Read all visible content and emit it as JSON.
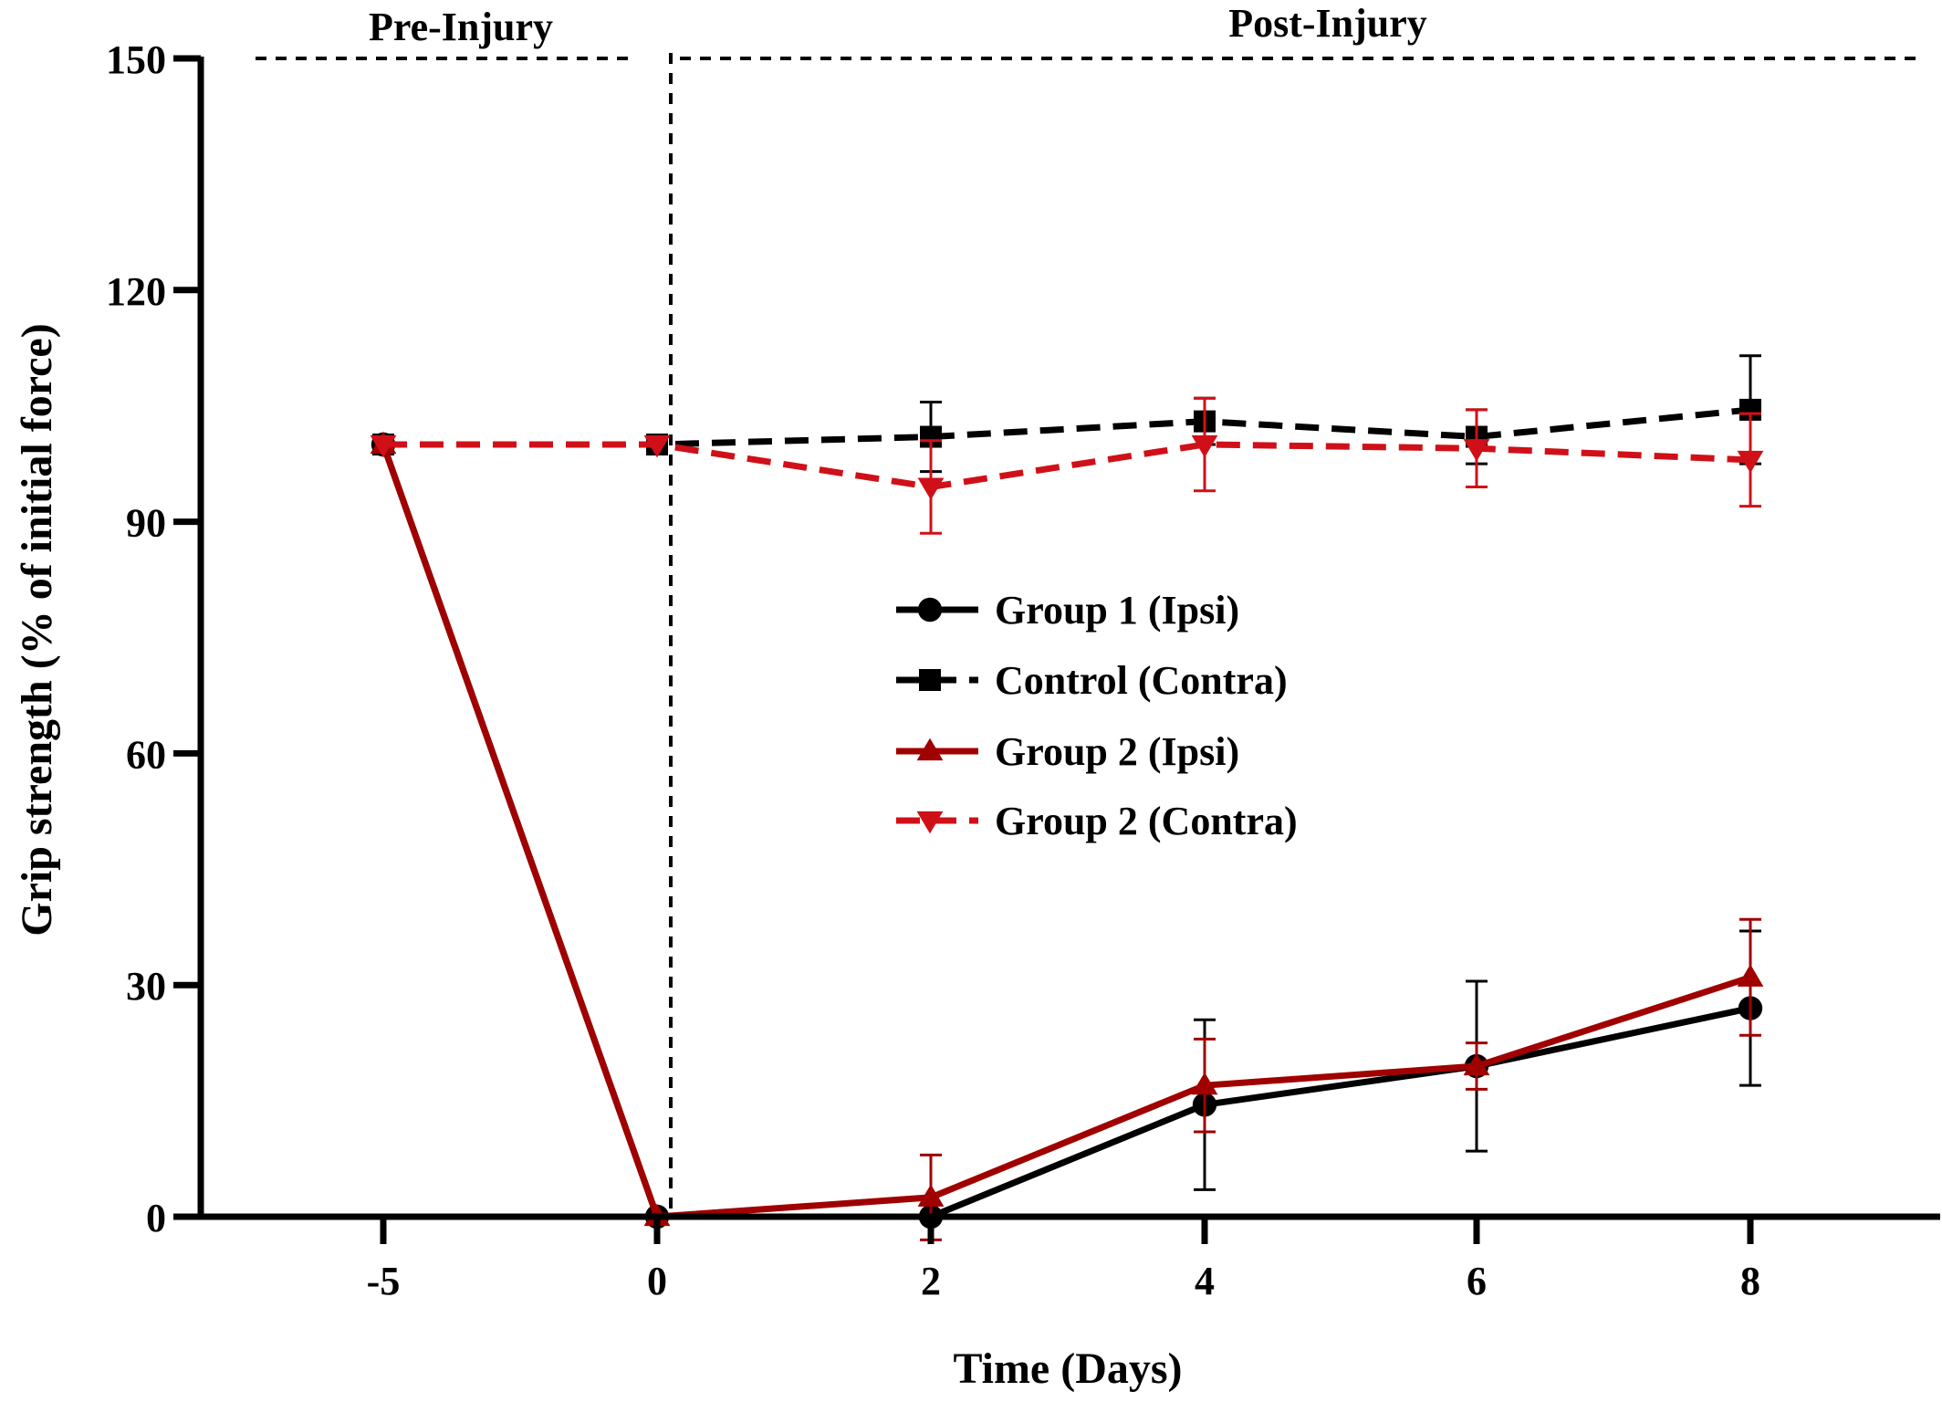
{
  "chart_data": {
    "type": "line",
    "title": "",
    "xlabel": "Time (Days)",
    "ylabel": "Grip strength (% of initial force)",
    "x_categories": [
      "-5",
      "0",
      "2",
      "4",
      "6",
      "8"
    ],
    "y_ticks": [
      "0",
      "30",
      "60",
      "90",
      "120",
      "150"
    ],
    "ylim": [
      0,
      150
    ],
    "grid": false,
    "legend_position": "center-right",
    "region_labels": {
      "pre": "Pre-Injury",
      "post": "Post-Injury"
    },
    "series": [
      {
        "name": "Group 1 (Ipsi)",
        "color": "#000000",
        "line_style": "solid",
        "marker": "circle",
        "values": [
          100,
          0,
          0,
          14.5,
          19.5,
          27
        ],
        "errors": [
          0,
          0,
          0,
          11,
          11,
          10
        ]
      },
      {
        "name": "Control (Contra)",
        "color": "#000000",
        "line_style": "dashed",
        "marker": "square",
        "values": [
          100,
          100,
          101,
          103,
          101,
          104.5
        ],
        "errors": [
          0,
          0,
          4.5,
          3,
          3.5,
          7
        ]
      },
      {
        "name": "Group 2 (Ipsi)",
        "color": "#a00000",
        "line_style": "solid",
        "marker": "triangle-up",
        "values": [
          100,
          0,
          2.5,
          17,
          19.5,
          31
        ],
        "errors": [
          0,
          0,
          5.5,
          6,
          3,
          7.5
        ]
      },
      {
        "name": "Group 2 (Contra)",
        "color": "#d01018",
        "line_style": "dashed",
        "marker": "triangle-down",
        "values": [
          100,
          100,
          94.5,
          100,
          99.5,
          98
        ],
        "errors": [
          0,
          0,
          6,
          6,
          5,
          6
        ]
      }
    ]
  }
}
